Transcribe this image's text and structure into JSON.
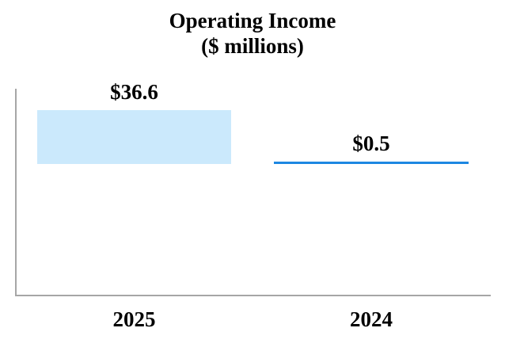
{
  "title": {
    "line1": "Operating Income",
    "line2": "($ millions)"
  },
  "chart_data": {
    "type": "bar",
    "title": "Operating Income",
    "subtitle": "($ millions)",
    "unit": "$ millions",
    "categories": [
      "2025",
      "2024"
    ],
    "values": [
      36.6,
      0.5
    ],
    "data_labels": [
      "$36.6",
      "$0.5"
    ],
    "series": [
      {
        "name": "Operating Income",
        "values": [
          36.6,
          0.5
        ]
      }
    ],
    "bar_colors": [
      "#cbe9fc",
      "#1d87e2"
    ],
    "axis_color": "#a6a6a6",
    "text_color": "#000000",
    "grid": false,
    "legend_position": "none",
    "baseline": 0,
    "xlabel": "",
    "ylabel": ""
  }
}
